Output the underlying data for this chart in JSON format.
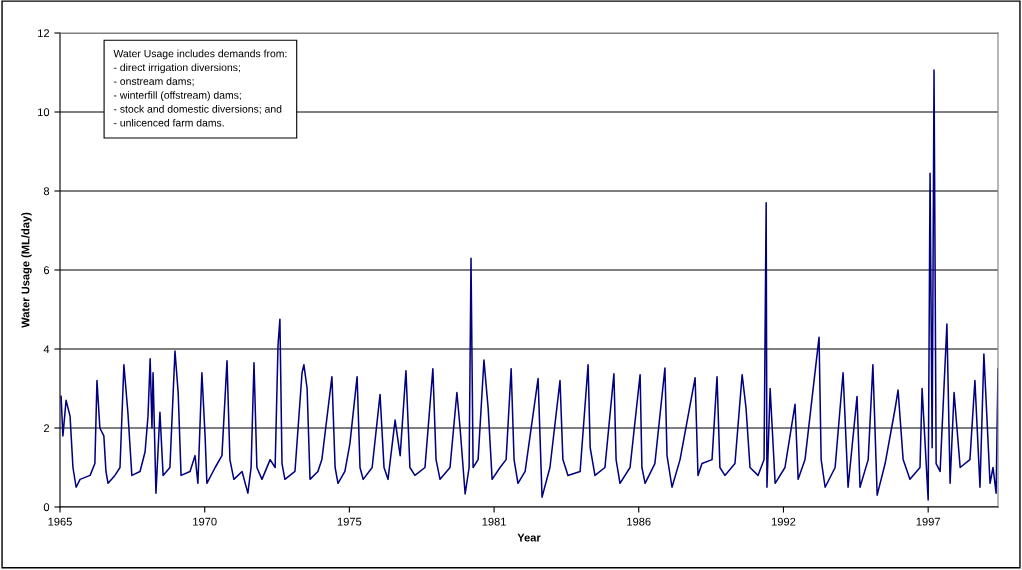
{
  "chart_data": {
    "type": "line",
    "xlabel": "Year",
    "ylabel": "Water Usage (ML/day)",
    "annotations": [
      "Water Usage includes demands from:\n- direct irrigation diversions;\n- onstream dams;\n- winterfill (offstream) dams;\n- stock and domestic diversions; and\n- unlicenced farm dams."
    ],
    "xlim": [
      "1965-01-01",
      "2000-06-29"
    ],
    "ylim": [
      0,
      12
    ],
    "yticks": [
      0,
      2,
      4,
      6,
      8,
      10,
      12
    ],
    "xticks": [
      {
        "value": "1965-01-01",
        "label": "1965"
      },
      {
        "value": "1970-06-24",
        "label": "1970"
      },
      {
        "value": "1975-12-14",
        "label": "1975"
      },
      {
        "value": "1981-06-05",
        "label": "1981"
      },
      {
        "value": "1986-11-25",
        "label": "1986"
      },
      {
        "value": "1992-05-17",
        "label": "1992"
      },
      {
        "value": "1997-11-07",
        "label": "1997"
      }
    ],
    "grid": "y",
    "legend": false,
    "series": [
      {
        "color": "#000080",
        "x": [
          "1965-01-16",
          "1965-02-10",
          "1965-03-26",
          "1965-05-20",
          "1965-06-29",
          "1965-08-12",
          "1965-10-05",
          "1966-02-21",
          "1966-04-28",
          "1966-05-27",
          "1966-07-06",
          "1966-08-30",
          "1966-09-28",
          "1966-10-27",
          "1967-01-30",
          "1967-04-10",
          "1967-06-03",
          "1967-07-28",
          "1967-09-21",
          "1968-01-12",
          "1968-03-22",
          "1968-05-01",
          "1968-05-31",
          "1968-06-25",
          "1968-07-10",
          "1968-08-19",
          "1968-10-13",
          "1968-11-26",
          "1969-02-28",
          "1969-05-09",
          "1969-06-22",
          "1969-08-01",
          "1969-12-03",
          "1970-02-10",
          "1970-03-22",
          "1970-05-16",
          "1970-06-29",
          "1970-07-24",
          "1970-11-15",
          "1971-02-17",
          "1971-04-28",
          "1971-06-07",
          "1971-08-01",
          "1971-11-22",
          "1972-02-10",
          "1972-03-26",
          "1972-05-05",
          "1972-06-14",
          "1972-08-23",
          "1972-12-14",
          "1973-02-21",
          "1973-04-02",
          "1973-04-28",
          "1973-05-27",
          "1973-07-06",
          "1973-11-22",
          "1974-02-28",
          "1974-03-26",
          "1974-05-09",
          "1974-06-18",
          "1974-10-05",
          "1974-11-29",
          "1975-04-17",
          "1975-05-31",
          "1975-07-10",
          "1975-10-13",
          "1975-12-21",
          "1976-03-30",
          "1976-05-09",
          "1976-06-22",
          "1976-10-24",
          "1977-02-10",
          "1977-04-06",
          "1977-05-31",
          "1977-09-06",
          "1977-11-15",
          "1978-02-03",
          "1978-03-30",
          "1978-06-07",
          "1978-10-24",
          "1979-02-10",
          "1979-03-26",
          "1979-05-20",
          "1979-10-05",
          "1980-01-08",
          "1980-02-21",
          "1980-05-01",
          "1980-06-25",
          "1980-07-21",
          "1980-08-19",
          "1980-10-27",
          "1981-01-16",
          "1981-03-15",
          "1981-05-09",
          "1981-08-26",
          "1981-11-18",
          "1982-01-27",
          "1982-03-08",
          "1982-05-01",
          "1982-08-08",
          "1983-02-03",
          "1983-03-30",
          "1983-07-17",
          "1983-12-03",
          "1984-01-12",
          "1984-03-22",
          "1984-09-06",
          "1984-12-25",
          "1985-01-23",
          "1985-03-30",
          "1985-08-15",
          "1985-12-17",
          "1986-01-16",
          "1986-03-11",
          "1986-07-28",
          "1986-12-14",
          "1987-01-08",
          "1987-02-21",
          "1987-07-06",
          "1987-11-22",
          "1987-12-21",
          "1988-02-28",
          "1988-06-18",
          "1989-01-12",
          "1989-02-21",
          "1989-04-17",
          "1989-09-03",
          "1989-11-11",
          "1989-12-21",
          "1990-02-28",
          "1990-07-17",
          "1990-10-24",
          "1990-12-17",
          "1991-02-10",
          "1991-05-31",
          "1991-08-23",
          "1991-09-21",
          "1991-10-02",
          "1991-11-15",
          "1992-01-23",
          "1992-06-07",
          "1992-10-24",
          "1992-12-06",
          "1993-03-11",
          "1993-09-21",
          "1993-10-20",
          "1993-12-14",
          "1994-05-01",
          "1994-08-19",
          "1994-10-27",
          "1995-02-28",
          "1995-04-10",
          "1995-08-01",
          "1995-10-05",
          "1995-12-03",
          "1996-03-22",
          "1996-08-08",
          "1996-09-17",
          "1996-11-26",
          "1997-02-28",
          "1997-07-17",
          "1997-08-15",
          "1997-11-07",
          "1997-12-03",
          "1998-01-01",
          "1998-01-27",
          "1998-02-25",
          "1998-04-21",
          "1998-07-24",
          "1998-09-06",
          "1998-10-31",
          "1999-01-23",
          "1999-06-07",
          "1999-08-15",
          "1999-10-24",
          "1999-12-17",
          "2000-03-11",
          "2000-04-21",
          "2000-06-03",
          "2000-06-29"
        ],
        "values": [
          2.8,
          1.8,
          2.7,
          2.3,
          1.0,
          0.5,
          0.7,
          0.8,
          1.1,
          3.2,
          2.0,
          1.8,
          0.9,
          0.6,
          0.8,
          1.0,
          3.6,
          2.4,
          0.8,
          0.9,
          1.4,
          2.3,
          3.75,
          2.0,
          3.4,
          0.35,
          2.4,
          0.8,
          1.0,
          3.95,
          2.9,
          0.8,
          0.9,
          1.3,
          0.6,
          3.4,
          1.8,
          0.6,
          1.0,
          1.3,
          3.7,
          1.2,
          0.7,
          0.9,
          0.35,
          1.0,
          3.65,
          1.0,
          0.7,
          1.2,
          1.0,
          4.1,
          4.75,
          1.1,
          0.7,
          0.9,
          3.4,
          3.6,
          3.0,
          0.7,
          0.9,
          1.2,
          3.3,
          1.0,
          0.6,
          0.9,
          1.6,
          3.3,
          1.0,
          0.7,
          1.0,
          2.85,
          1.0,
          0.7,
          2.2,
          1.3,
          3.45,
          1.0,
          0.8,
          1.0,
          3.5,
          1.2,
          0.7,
          1.0,
          2.9,
          2.0,
          0.33,
          1.0,
          6.3,
          1.0,
          1.2,
          3.72,
          2.5,
          0.7,
          1.0,
          1.2,
          3.5,
          1.2,
          0.6,
          0.9,
          3.25,
          0.25,
          1.0,
          3.2,
          1.2,
          0.8,
          0.9,
          3.6,
          1.5,
          0.8,
          1.0,
          3.37,
          1.2,
          0.6,
          1.0,
          3.35,
          1.0,
          0.6,
          1.1,
          3.52,
          1.3,
          0.5,
          1.2,
          3.27,
          0.8,
          1.1,
          1.2,
          3.3,
          1.0,
          0.8,
          1.1,
          3.35,
          2.5,
          1.0,
          0.8,
          1.2,
          7.7,
          0.5,
          3.0,
          0.6,
          1.0,
          2.6,
          0.7,
          1.2,
          4.3,
          1.2,
          0.5,
          1.0,
          3.4,
          0.5,
          2.8,
          0.5,
          1.2,
          3.6,
          0.3,
          1.1,
          2.5,
          2.96,
          1.2,
          0.7,
          1.0,
          3.0,
          0.18,
          8.45,
          1.5,
          11.06,
          1.1,
          0.9,
          4.63,
          0.6,
          2.9,
          1.0,
          1.2,
          3.2,
          0.5,
          3.87,
          0.6,
          1.0,
          0.35,
          3.5
        ]
      }
    ]
  }
}
